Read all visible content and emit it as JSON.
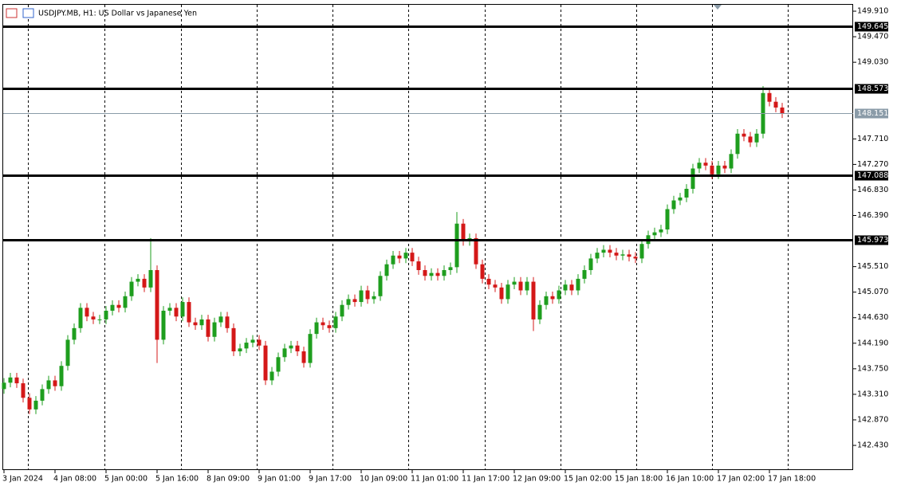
{
  "chart_data": {
    "type": "candlestick",
    "title": "USDJPY.MB, H1:  US Dollar vs Japanese Yen",
    "up_color": "#1e9e1e",
    "down_color": "#d41818",
    "ylim": [
      142.005,
      150.034
    ],
    "yticks": [
      {
        "value": 149.91,
        "label": "149.910"
      },
      {
        "value": 149.47,
        "label": "149.470"
      },
      {
        "value": 149.03,
        "label": "149.030"
      },
      {
        "value": 147.71,
        "label": "147.710"
      },
      {
        "value": 147.27,
        "label": "147.270"
      },
      {
        "value": 146.83,
        "label": "146.830"
      },
      {
        "value": 146.39,
        "label": "146.390"
      },
      {
        "value": 145.51,
        "label": "145.510"
      },
      {
        "value": 145.07,
        "label": "145.070"
      },
      {
        "value": 144.63,
        "label": "144.630"
      },
      {
        "value": 144.19,
        "label": "144.190"
      },
      {
        "value": 143.75,
        "label": "143.750"
      },
      {
        "value": 143.31,
        "label": "143.310"
      },
      {
        "value": 142.87,
        "label": "142.870"
      },
      {
        "value": 142.43,
        "label": "142.430"
      }
    ],
    "levels": [
      149.645,
      148.573,
      147.088,
      145.973
    ],
    "current_price": 148.151,
    "categories": [
      "3 Jan 2024",
      null,
      null,
      null,
      null,
      null,
      null,
      null,
      "4 Jan 08:00",
      null,
      null,
      null,
      null,
      null,
      null,
      null,
      "5 Jan 00:00",
      null,
      null,
      null,
      null,
      null,
      null,
      null,
      "5 Jan 16:00",
      null,
      null,
      null,
      null,
      null,
      null,
      null,
      "8 Jan 09:00",
      null,
      null,
      null,
      null,
      null,
      null,
      null,
      "9 Jan 01:00",
      null,
      null,
      null,
      null,
      null,
      null,
      null,
      "9 Jan 17:00",
      null,
      null,
      null,
      null,
      null,
      null,
      null,
      "10 Jan 09:00",
      null,
      null,
      null,
      null,
      null,
      null,
      null,
      "11 Jan 01:00",
      null,
      null,
      null,
      null,
      null,
      null,
      null,
      "11 Jan 17:00",
      null,
      null,
      null,
      null,
      null,
      null,
      null,
      "12 Jan 09:00",
      null,
      null,
      null,
      null,
      null,
      null,
      null,
      "15 Jan 02:00",
      null,
      null,
      null,
      null,
      null,
      null,
      null,
      "15 Jan 18:00",
      null,
      null,
      null,
      null,
      null,
      null,
      null,
      "16 Jan 10:00",
      null,
      null,
      null,
      null,
      null,
      null,
      null,
      "17 Jan 02:00",
      null,
      null,
      null,
      null,
      null,
      null,
      null,
      "17 Jan 18:00",
      null,
      null
    ],
    "open": [
      143.4,
      143.51,
      143.6,
      143.5,
      143.25,
      143.05,
      143.2,
      143.4,
      143.55,
      143.45,
      143.8,
      144.25,
      144.45,
      144.8,
      144.65,
      144.6,
      144.6,
      144.75,
      144.85,
      144.8,
      145.0,
      145.25,
      145.3,
      145.15,
      145.45,
      144.25,
      144.75,
      144.8,
      144.65,
      144.9,
      144.55,
      144.5,
      144.6,
      144.3,
      144.55,
      144.65,
      144.45,
      144.05,
      144.1,
      144.2,
      144.25,
      144.15,
      143.55,
      143.7,
      143.95,
      144.1,
      144.15,
      144.05,
      143.85,
      144.35,
      144.55,
      144.5,
      144.45,
      144.65,
      144.85,
      144.95,
      144.9,
      145.1,
      144.95,
      145.0,
      145.35,
      145.55,
      145.7,
      145.65,
      145.75,
      145.6,
      145.45,
      145.35,
      145.4,
      145.35,
      145.45,
      145.5,
      146.25,
      145.95,
      146.0,
      145.55,
      145.3,
      145.2,
      145.15,
      144.95,
      145.2,
      145.25,
      145.1,
      145.25,
      144.6,
      144.85,
      145.0,
      144.95,
      145.1,
      145.2,
      145.1,
      145.3,
      145.45,
      145.65,
      145.75,
      145.8,
      145.75,
      145.7,
      145.72,
      145.68,
      145.65,
      145.9,
      146.05,
      146.1,
      146.15,
      146.5,
      146.65,
      146.7,
      146.85,
      147.2,
      147.3,
      147.25,
      147.1,
      147.25,
      147.2,
      147.45,
      147.8,
      147.75,
      147.65,
      147.8,
      148.5,
      148.35,
      148.25
    ],
    "high": [
      143.59,
      143.68,
      143.68,
      143.58,
      143.33,
      143.28,
      143.48,
      143.63,
      143.63,
      143.88,
      144.33,
      144.53,
      144.88,
      144.88,
      144.73,
      144.68,
      144.83,
      144.93,
      144.93,
      145.08,
      145.33,
      145.38,
      145.38,
      146.0,
      145.53,
      144.83,
      144.88,
      144.88,
      144.98,
      144.98,
      144.63,
      144.68,
      144.68,
      144.63,
      144.73,
      144.73,
      144.53,
      144.18,
      144.28,
      144.33,
      144.33,
      144.23,
      143.78,
      144.03,
      144.18,
      144.23,
      144.23,
      144.13,
      144.43,
      144.63,
      144.63,
      144.58,
      144.73,
      144.93,
      145.03,
      145.03,
      145.18,
      145.18,
      145.08,
      145.43,
      145.63,
      145.78,
      145.78,
      145.83,
      145.83,
      145.68,
      145.53,
      145.48,
      145.48,
      145.53,
      145.58,
      146.45,
      146.33,
      146.08,
      146.08,
      145.63,
      145.38,
      145.28,
      145.23,
      145.28,
      145.33,
      145.33,
      145.33,
      145.33,
      144.93,
      145.08,
      145.08,
      145.18,
      145.28,
      145.28,
      145.38,
      145.53,
      145.73,
      145.83,
      145.88,
      145.88,
      145.83,
      145.8,
      145.8,
      145.76,
      145.98,
      146.13,
      146.18,
      146.23,
      146.58,
      146.73,
      146.78,
      146.93,
      147.28,
      147.38,
      147.38,
      147.33,
      147.33,
      147.33,
      147.53,
      147.88,
      147.88,
      147.83,
      147.88,
      148.62,
      148.58,
      148.43,
      148.33
    ],
    "low": [
      143.32,
      143.43,
      143.42,
      143.17,
      142.97,
      142.97,
      143.12,
      143.32,
      143.37,
      143.37,
      143.72,
      144.17,
      144.37,
      144.57,
      144.52,
      144.52,
      144.52,
      144.67,
      144.72,
      144.72,
      144.92,
      145.17,
      145.07,
      145.07,
      143.85,
      144.17,
      144.67,
      144.57,
      144.57,
      144.47,
      144.42,
      144.42,
      144.22,
      144.22,
      144.47,
      144.37,
      143.97,
      143.97,
      144.02,
      144.12,
      144.07,
      143.47,
      143.47,
      143.62,
      143.87,
      144.02,
      143.97,
      143.77,
      143.77,
      144.27,
      144.42,
      144.37,
      144.37,
      144.57,
      144.77,
      144.82,
      144.82,
      144.87,
      144.87,
      144.92,
      145.27,
      145.47,
      145.57,
      145.57,
      145.52,
      145.37,
      145.27,
      145.27,
      145.27,
      145.27,
      145.37,
      145.4,
      145.87,
      145.87,
      145.47,
      145.22,
      145.12,
      145.07,
      144.87,
      144.87,
      145.12,
      145.02,
      145.02,
      144.4,
      144.52,
      144.77,
      144.87,
      144.87,
      145.02,
      145.02,
      145.02,
      145.22,
      145.37,
      145.57,
      145.67,
      145.67,
      145.62,
      145.62,
      145.6,
      145.57,
      145.57,
      145.82,
      145.97,
      146.02,
      146.07,
      146.42,
      146.57,
      146.62,
      146.77,
      147.12,
      147.17,
      147.02,
      147.02,
      147.12,
      147.12,
      147.37,
      147.67,
      147.57,
      147.57,
      147.72,
      148.27,
      148.17,
      148.07
    ],
    "close": [
      143.51,
      143.6,
      143.5,
      143.25,
      143.05,
      143.2,
      143.4,
      143.55,
      143.45,
      143.8,
      144.25,
      144.45,
      144.8,
      144.65,
      144.6,
      144.6,
      144.75,
      144.85,
      144.8,
      145.0,
      145.25,
      145.3,
      145.15,
      145.45,
      144.25,
      144.75,
      144.8,
      144.65,
      144.9,
      144.55,
      144.5,
      144.6,
      144.3,
      144.55,
      144.65,
      144.45,
      144.05,
      144.1,
      144.2,
      144.25,
      144.15,
      143.55,
      143.7,
      143.95,
      144.1,
      144.15,
      144.05,
      143.85,
      144.35,
      144.55,
      144.5,
      144.45,
      144.65,
      144.85,
      144.95,
      144.9,
      145.1,
      144.95,
      145.0,
      145.35,
      145.55,
      145.7,
      145.65,
      145.75,
      145.6,
      145.45,
      145.35,
      145.4,
      145.35,
      145.45,
      145.5,
      146.25,
      145.95,
      146.0,
      145.55,
      145.3,
      145.2,
      145.15,
      144.95,
      145.2,
      145.25,
      145.1,
      145.25,
      144.6,
      144.85,
      145.0,
      144.95,
      145.1,
      145.2,
      145.1,
      145.3,
      145.45,
      145.65,
      145.75,
      145.8,
      145.75,
      145.7,
      145.72,
      145.68,
      145.65,
      145.9,
      146.05,
      146.1,
      146.15,
      146.5,
      146.65,
      146.7,
      146.85,
      147.2,
      147.3,
      147.25,
      147.1,
      147.25,
      147.2,
      147.45,
      147.8,
      147.75,
      147.65,
      147.8,
      148.5,
      148.35,
      148.25,
      148.15
    ]
  }
}
